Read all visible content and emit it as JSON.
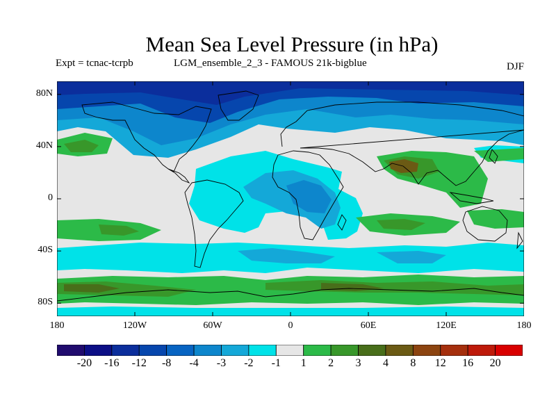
{
  "title": "Mean Sea Level Pressure (in hPa)",
  "experiment": "Expt = tcnac-tcrpb",
  "model": "LGM_ensemble_2_3 - FAMOUS 21k-bigblue",
  "season": "DJF",
  "map": {
    "projection": "cylindrical-equidistant",
    "lon_range": [
      -180,
      180
    ],
    "lat_range": [
      -90,
      90
    ],
    "lat_ticks": [
      {
        "v": 80,
        "label": "80N"
      },
      {
        "v": 40,
        "label": "40N"
      },
      {
        "v": 0,
        "label": "0"
      },
      {
        "v": -40,
        "label": "40S"
      },
      {
        "v": -80,
        "label": "80S"
      }
    ],
    "lon_ticks": [
      {
        "v": -180,
        "label": "180"
      },
      {
        "v": -120,
        "label": "120W"
      },
      {
        "v": -60,
        "label": "60W"
      },
      {
        "v": 0,
        "label": "0"
      },
      {
        "v": 60,
        "label": "60E"
      },
      {
        "v": 120,
        "label": "120E"
      },
      {
        "v": 180,
        "label": "180"
      }
    ],
    "background_color": "#e6e6e6"
  },
  "colorbar": {
    "colors": [
      "#200b6e",
      "#0c0f86",
      "#0b2e9c",
      "#0646ad",
      "#0764c2",
      "#0d86cc",
      "#14a8d8",
      "#00e2e8",
      "#e6e6e6",
      "#2cba48",
      "#38972a",
      "#486e1a",
      "#6b5a14",
      "#8c4410",
      "#a52f0d",
      "#be1a0a",
      "#d90000"
    ],
    "labels": [
      "-20",
      "-16",
      "-12",
      "-8",
      "-4",
      "-3",
      "-2",
      "-1",
      "1",
      "2",
      "3",
      "4",
      "8",
      "12",
      "16",
      "20"
    ]
  }
}
